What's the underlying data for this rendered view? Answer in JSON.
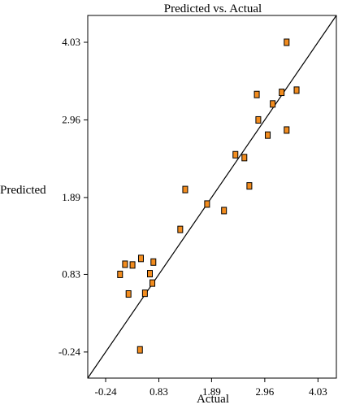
{
  "chart_data": {
    "type": "scatter",
    "title": "Predicted vs. Actual",
    "xlabel": "Actual",
    "ylabel": "Predicted",
    "xlim": [
      -0.6,
      4.4
    ],
    "ylim": [
      -0.6,
      4.4
    ],
    "xticks": [
      -0.24,
      0.83,
      1.89,
      2.96,
      4.03
    ],
    "xtick_labels": [
      "-0.24",
      "0.83",
      "1.89",
      "2.96",
      "4.03"
    ],
    "yticks": [
      -0.24,
      0.83,
      1.89,
      2.96,
      4.03
    ],
    "ytick_labels": [
      "-0.24",
      "0.83",
      "1.89",
      "2.96",
      "4.03"
    ],
    "grid": false,
    "reference_line": "y = x",
    "marker_color": "#f28c1e",
    "marker_edge": "#000000",
    "points": [
      {
        "x": 0.05,
        "y": 0.83
      },
      {
        "x": 0.15,
        "y": 0.97
      },
      {
        "x": 0.22,
        "y": 0.56
      },
      {
        "x": 0.3,
        "y": 0.96
      },
      {
        "x": 0.47,
        "y": 1.05
      },
      {
        "x": 0.45,
        "y": -0.21
      },
      {
        "x": 0.55,
        "y": 0.57
      },
      {
        "x": 0.65,
        "y": 0.84
      },
      {
        "x": 0.7,
        "y": 0.71
      },
      {
        "x": 0.72,
        "y": 1.0
      },
      {
        "x": 1.26,
        "y": 1.45
      },
      {
        "x": 1.36,
        "y": 2.0
      },
      {
        "x": 1.8,
        "y": 1.8
      },
      {
        "x": 2.14,
        "y": 1.71
      },
      {
        "x": 2.37,
        "y": 2.48
      },
      {
        "x": 2.55,
        "y": 2.44
      },
      {
        "x": 2.65,
        "y": 2.05
      },
      {
        "x": 2.8,
        "y": 3.31
      },
      {
        "x": 2.83,
        "y": 2.96
      },
      {
        "x": 3.02,
        "y": 2.75
      },
      {
        "x": 3.12,
        "y": 3.18
      },
      {
        "x": 3.3,
        "y": 3.34
      },
      {
        "x": 3.4,
        "y": 4.03
      },
      {
        "x": 3.4,
        "y": 2.82
      },
      {
        "x": 3.6,
        "y": 3.37
      }
    ]
  }
}
